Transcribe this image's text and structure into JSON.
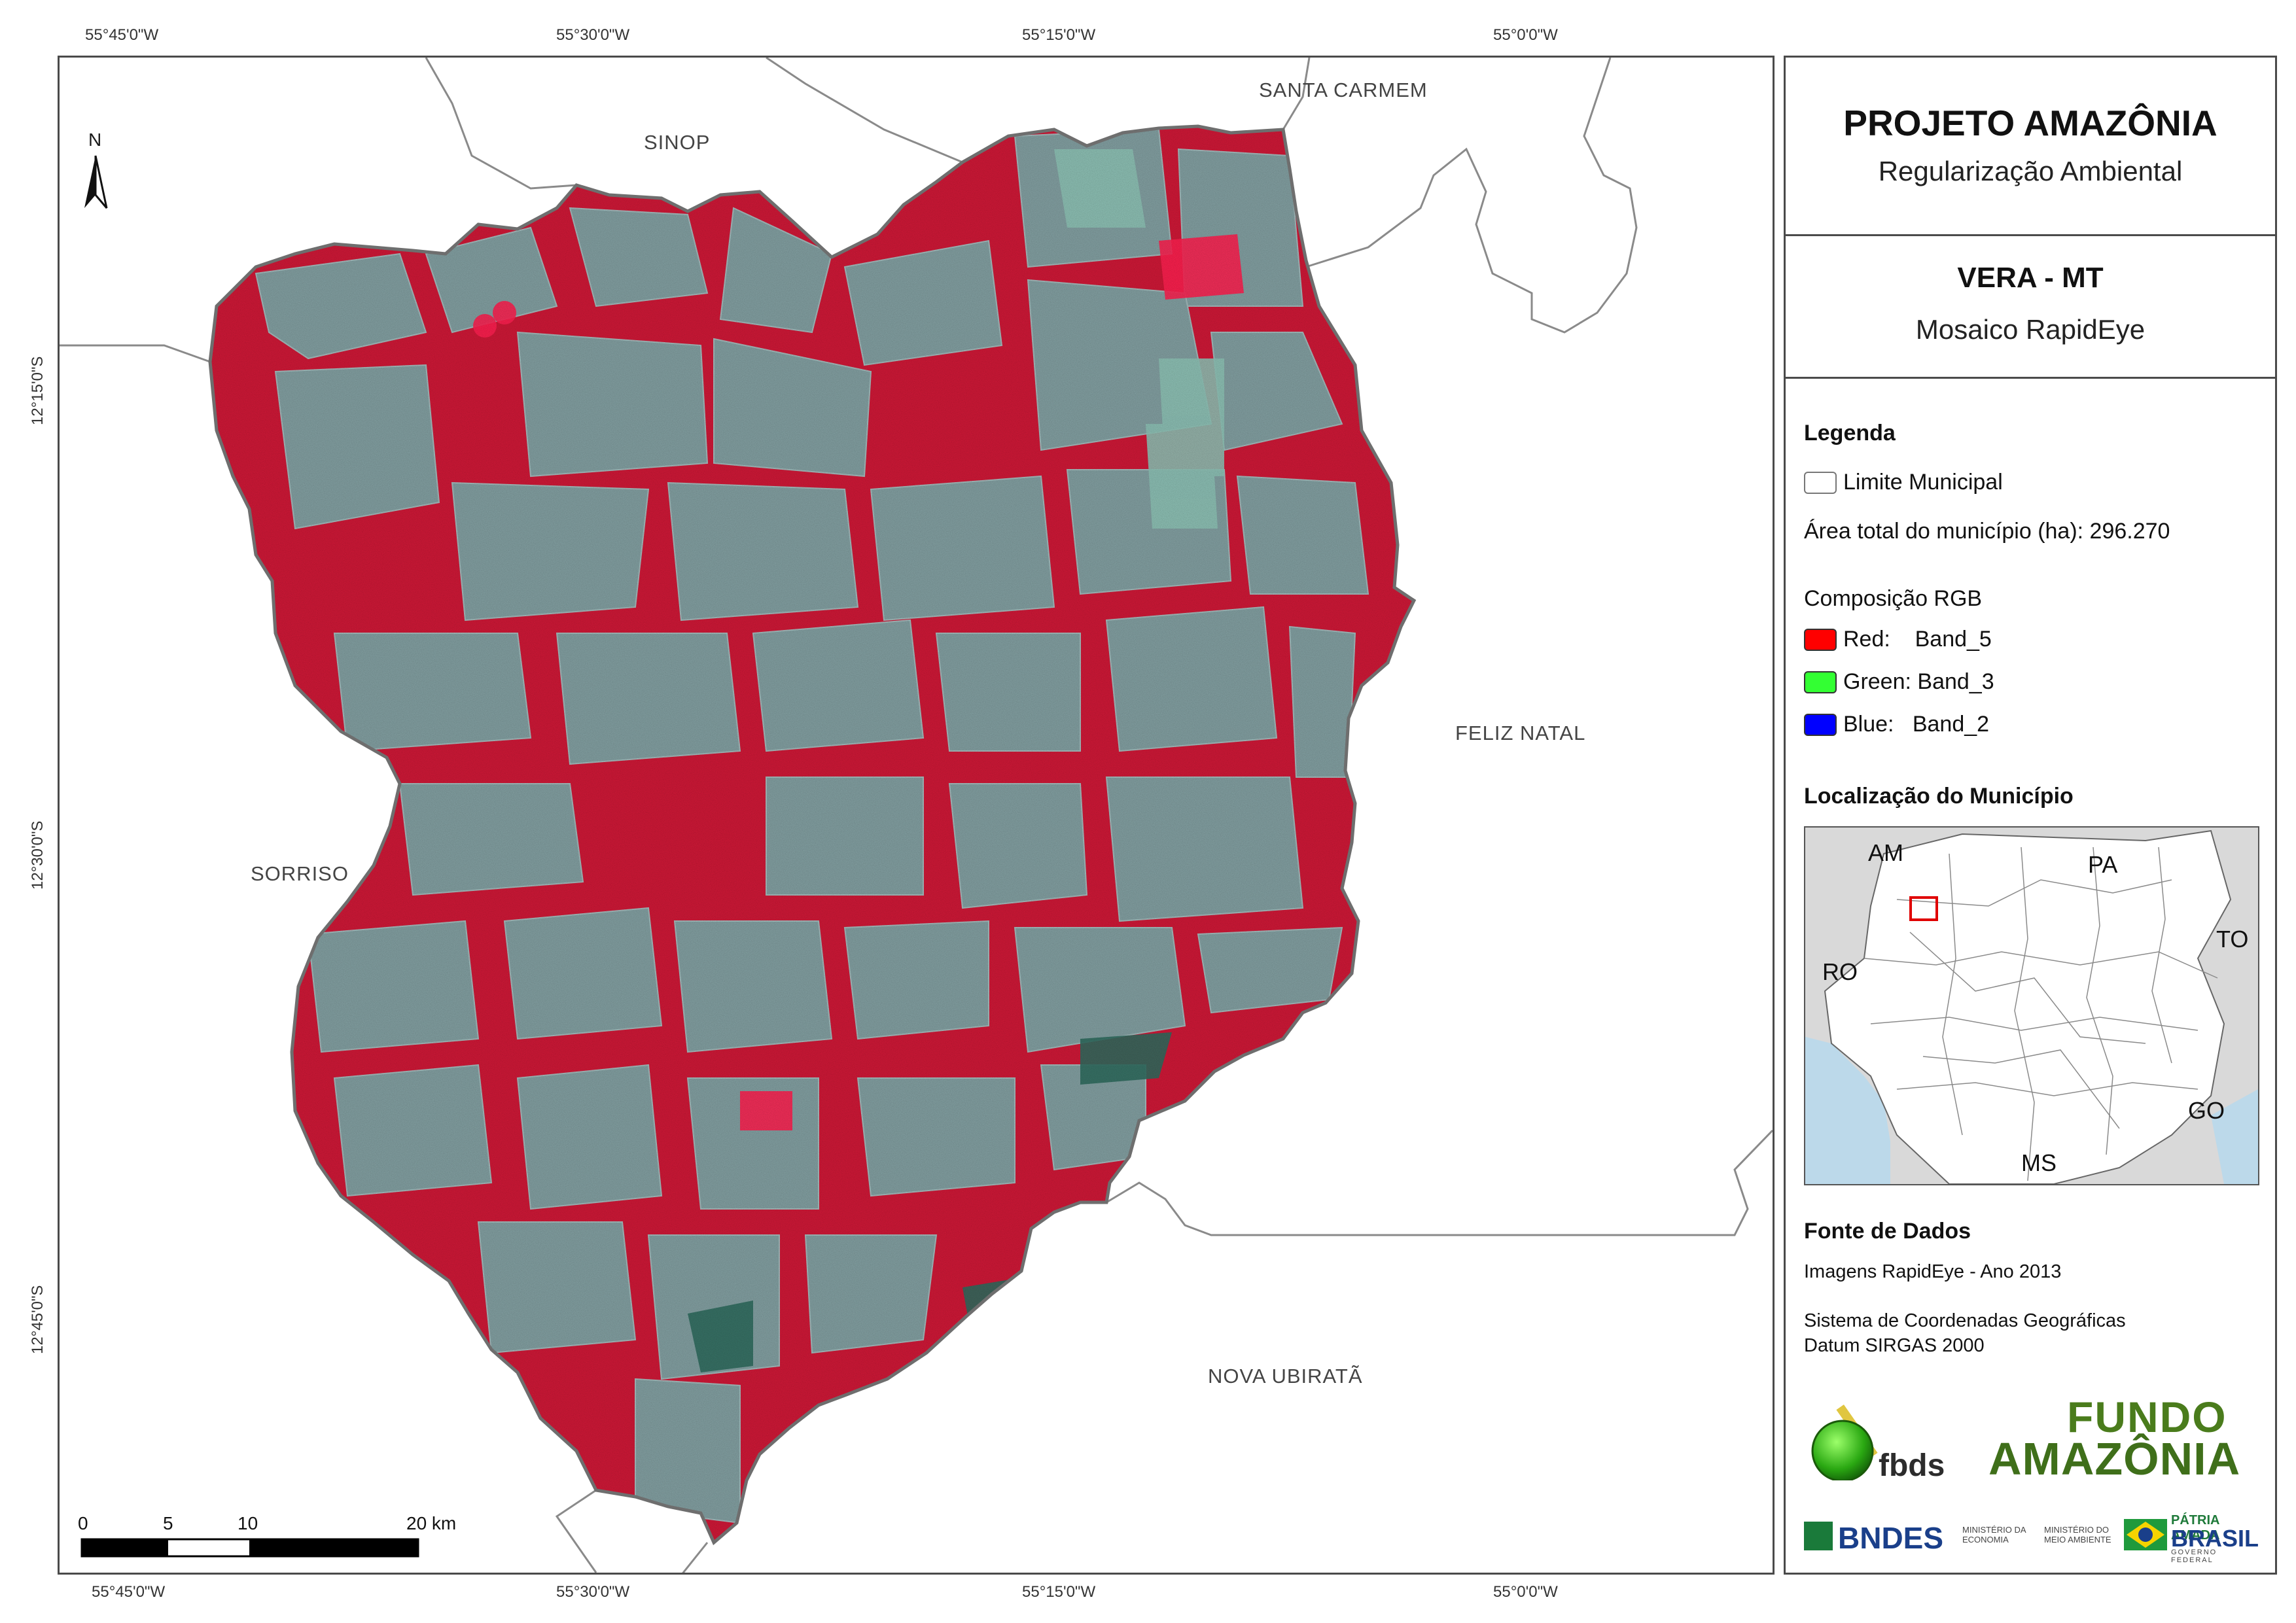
{
  "coordinates": {
    "lon_top": [
      "55°45'0\"W",
      "55°30'0\"W",
      "55°15'0\"W",
      "55°0'0\"W"
    ],
    "lon_bottom": [
      "55°45'0\"W",
      "55°30'0\"W",
      "55°15'0\"W",
      "55°0'0\"W"
    ],
    "lat_left": [
      "12°15'0\"S",
      "12°30'0\"S",
      "12°45'0\"S"
    ]
  },
  "north_arrow": {
    "label": "N",
    "icon": "north-arrow-icon"
  },
  "neighbors": {
    "sinop": "SINOP",
    "santa_carmem": "SANTA CARMEM",
    "feliz_natal": "FELIZ NATAL",
    "sorriso": "SORRISO",
    "nova_ubirata": "NOVA UBIRATÃ"
  },
  "scale_bar": {
    "labels": [
      "0",
      "5",
      "10",
      "20 km"
    ]
  },
  "panel": {
    "title": "PROJETO AMAZÔNIA",
    "subtitle": "Regularização Ambiental",
    "municipality": "VERA - MT",
    "product": "Mosaico RapidEye",
    "legend": {
      "heading": "Legenda",
      "boundary": "Limite Municipal",
      "area": "Área total do município (ha): 296.270",
      "rgb_heading": "Composição RGB",
      "bands": [
        {
          "label": "Red:    Band_5",
          "color": "#ff0000"
        },
        {
          "label": "Green: Band_3",
          "color": "#33ff33"
        },
        {
          "label": "Blue:   Band_2",
          "color": "#0000ff"
        }
      ]
    },
    "location": {
      "heading": "Localização do Município",
      "states": {
        "am": "AM",
        "pa": "PA",
        "ro": "RO",
        "to": "TO",
        "go": "GO",
        "ms": "MS"
      }
    },
    "sources": {
      "heading": "Fonte de Dados",
      "images": "Imagens RapidEye - Ano 2013",
      "crs": "Sistema de Coordenadas Geográficas",
      "datum": "Datum SIRGAS 2000"
    },
    "logos": {
      "fbds": "fbds",
      "fundo_line1": "FUNDO",
      "fundo_line2": "AMAZÔNIA",
      "bndes": "BNDES",
      "min_economia": "MINISTÉRIO DA ECONOMIA",
      "min_ambiente": "MINISTÉRIO DO MEIO AMBIENTE",
      "patria": "PÁTRIA AMADA",
      "brasil": "BRASIL",
      "governo": "GOVERNO FEDERAL"
    }
  },
  "colors": {
    "forest": "#d01837",
    "pasture": "#7fa8a8",
    "frame": "#4a4a4a",
    "water": "#bcd9ea"
  }
}
